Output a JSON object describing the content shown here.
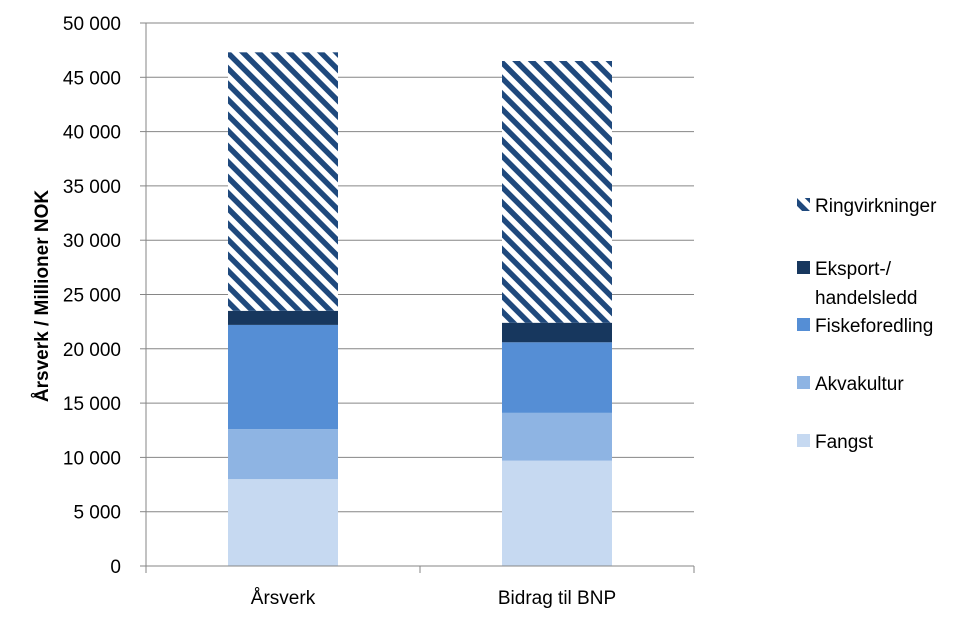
{
  "chart_data": {
    "type": "bar",
    "stacked": true,
    "ylabel": "Årsverk / Millioner NOK",
    "xlabel": "",
    "ylim": [
      0,
      50000
    ],
    "ytick_step": 5000,
    "ytick_labels": [
      "0",
      "5 000",
      "10 000",
      "15 000",
      "20 000",
      "25 000",
      "30 000",
      "35 000",
      "40 000",
      "45 000",
      "50 000"
    ],
    "grid": true,
    "legend_position": "right",
    "categories": [
      "Årsverk",
      "Bidrag til BNP"
    ],
    "series": [
      {
        "name": "Fangst",
        "values": [
          8000,
          9700
        ],
        "color": "#c6d9f1",
        "pattern": "solid"
      },
      {
        "name": "Akvakultur",
        "values": [
          4600,
          4400
        ],
        "color": "#8eb4e3",
        "pattern": "solid"
      },
      {
        "name": "Fiskeforedling",
        "values": [
          9600,
          6500
        ],
        "color": "#558ed5",
        "pattern": "solid"
      },
      {
        "name": "Eksport-/ handelsledd",
        "legend_lines": [
          "Eksport-/",
          "handelsledd"
        ],
        "values": [
          1300,
          1800
        ],
        "color": "#17375e",
        "pattern": "solid"
      },
      {
        "name": "Ringvirkninger",
        "values": [
          23800,
          24100
        ],
        "color": "#1f497d",
        "pattern": "diagonal-stripes"
      }
    ]
  }
}
